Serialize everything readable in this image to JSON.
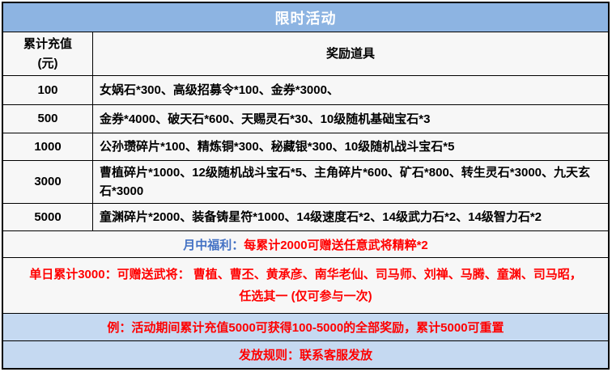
{
  "title": "限时活动",
  "table": {
    "amount_header_line1": "累计充值",
    "amount_header_line2": "(元)",
    "reward_header": "奖励道具",
    "rows": [
      {
        "amount": "100",
        "reward": "女娲石*300、高级招募令*100、金券*3000、"
      },
      {
        "amount": "500",
        "reward": "金券*4000、破天石*600、天赐灵石*30、10级随机基础宝石*3"
      },
      {
        "amount": "1000",
        "reward": "公孙瓒碎片*100、精炼铜*300、秘藏银*300、10级随机战斗宝石*5"
      },
      {
        "amount": "3000",
        "reward": "曹植碎片*1000、12级随机战斗宝石*5、主角碎片*600、矿石*800、转生灵石*3000、九天玄石*3000"
      },
      {
        "amount": "5000",
        "reward": "童渊碎片*2000、装备铸星符*1000、14级速度石*2、14级武力石*2、14级智力石*2"
      }
    ]
  },
  "notes": {
    "mid_month_label": "月中福利：",
    "mid_month_text": "每累计2000可赠送任意武将精粹*2",
    "daily_line1": "单日累计3000：可赠送武将： 曹植、曹丕、黄承彦、南华老仙、司马师、刘禅、马腾、童渊、司马昭，",
    "daily_line2": "任选其一 (仅可参与一次)",
    "example": "例：活动期间累计充值5000可获得100-5000的全部奖励，累计5000可重置",
    "rules": "发放规则：联系客服发放"
  },
  "colors": {
    "header_bg": "#8DB4E2",
    "footer_bg": "#C5D9F1",
    "label_blue": "#4472C4",
    "alert_red": "#FF0000",
    "border": "#000000"
  }
}
